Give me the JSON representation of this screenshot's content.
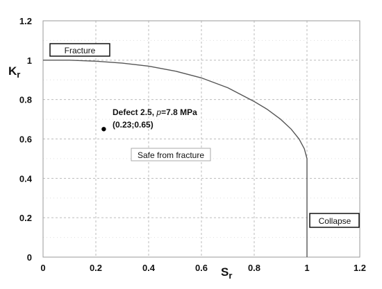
{
  "chart_data": {
    "type": "line",
    "xlabel": "S",
    "xlabel_sub": "r",
    "ylabel": "K",
    "ylabel_sub": "r",
    "xlim": [
      0,
      1.2
    ],
    "ylim": [
      0,
      1.2
    ],
    "x_ticks": [
      "0",
      "0.2",
      "0.4",
      "0.6",
      "0.8",
      "1",
      "1.2"
    ],
    "y_ticks": [
      "0",
      "0.2",
      "0.4",
      "0.6",
      "0.8",
      "1",
      "1.2"
    ],
    "x_tick_values": [
      0,
      0.2,
      0.4,
      0.6,
      0.8,
      1.0,
      1.2
    ],
    "y_tick_values": [
      0,
      0.2,
      0.4,
      0.6,
      0.8,
      1.0,
      1.2
    ],
    "grid": "dashed",
    "series": [
      {
        "color": "#555555",
        "x": [
          0,
          0.1,
          0.2,
          0.3,
          0.4,
          0.5,
          0.6,
          0.7,
          0.8,
          0.85,
          0.9,
          0.94,
          0.97,
          0.99,
          1.0,
          1.0
        ],
        "y": [
          1.0,
          1.0,
          0.995,
          0.985,
          0.97,
          0.945,
          0.91,
          0.86,
          0.79,
          0.75,
          0.7,
          0.65,
          0.6,
          0.55,
          0.5,
          0.0
        ]
      }
    ],
    "points": [
      {
        "x": 0.23,
        "y": 0.65,
        "color": "#000000"
      }
    ],
    "annotations": {
      "defect_label": "Defect 2.5, ",
      "defect_p": "p",
      "defect_value": "=7.8 MPa",
      "defect_coords": "(0.23;0.65)",
      "safe_region": "Safe from fracture",
      "fracture_box": "Fracture",
      "collapse_box": "Collapse"
    }
  }
}
